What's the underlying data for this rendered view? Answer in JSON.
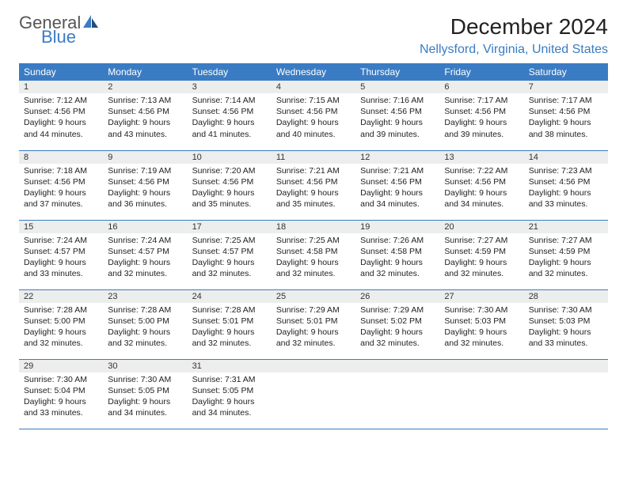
{
  "logo": {
    "text1": "General",
    "text2": "Blue"
  },
  "title": "December 2024",
  "location": "Nellysford, Virginia, United States",
  "colors": {
    "brand_blue": "#3a7cc4",
    "header_bg": "#3a7cc4",
    "header_text": "#ffffff",
    "daynum_bg": "#eceded",
    "border": "#3a7cc4",
    "text": "#222222",
    "logo_gray": "#555555"
  },
  "weekdays": [
    "Sunday",
    "Monday",
    "Tuesday",
    "Wednesday",
    "Thursday",
    "Friday",
    "Saturday"
  ],
  "days": [
    {
      "n": "1",
      "sunrise": "7:12 AM",
      "sunset": "4:56 PM",
      "daylight": "9 hours and 44 minutes."
    },
    {
      "n": "2",
      "sunrise": "7:13 AM",
      "sunset": "4:56 PM",
      "daylight": "9 hours and 43 minutes."
    },
    {
      "n": "3",
      "sunrise": "7:14 AM",
      "sunset": "4:56 PM",
      "daylight": "9 hours and 41 minutes."
    },
    {
      "n": "4",
      "sunrise": "7:15 AM",
      "sunset": "4:56 PM",
      "daylight": "9 hours and 40 minutes."
    },
    {
      "n": "5",
      "sunrise": "7:16 AM",
      "sunset": "4:56 PM",
      "daylight": "9 hours and 39 minutes."
    },
    {
      "n": "6",
      "sunrise": "7:17 AM",
      "sunset": "4:56 PM",
      "daylight": "9 hours and 39 minutes."
    },
    {
      "n": "7",
      "sunrise": "7:17 AM",
      "sunset": "4:56 PM",
      "daylight": "9 hours and 38 minutes."
    },
    {
      "n": "8",
      "sunrise": "7:18 AM",
      "sunset": "4:56 PM",
      "daylight": "9 hours and 37 minutes."
    },
    {
      "n": "9",
      "sunrise": "7:19 AM",
      "sunset": "4:56 PM",
      "daylight": "9 hours and 36 minutes."
    },
    {
      "n": "10",
      "sunrise": "7:20 AM",
      "sunset": "4:56 PM",
      "daylight": "9 hours and 35 minutes."
    },
    {
      "n": "11",
      "sunrise": "7:21 AM",
      "sunset": "4:56 PM",
      "daylight": "9 hours and 35 minutes."
    },
    {
      "n": "12",
      "sunrise": "7:21 AM",
      "sunset": "4:56 PM",
      "daylight": "9 hours and 34 minutes."
    },
    {
      "n": "13",
      "sunrise": "7:22 AM",
      "sunset": "4:56 PM",
      "daylight": "9 hours and 34 minutes."
    },
    {
      "n": "14",
      "sunrise": "7:23 AM",
      "sunset": "4:56 PM",
      "daylight": "9 hours and 33 minutes."
    },
    {
      "n": "15",
      "sunrise": "7:24 AM",
      "sunset": "4:57 PM",
      "daylight": "9 hours and 33 minutes."
    },
    {
      "n": "16",
      "sunrise": "7:24 AM",
      "sunset": "4:57 PM",
      "daylight": "9 hours and 32 minutes."
    },
    {
      "n": "17",
      "sunrise": "7:25 AM",
      "sunset": "4:57 PM",
      "daylight": "9 hours and 32 minutes."
    },
    {
      "n": "18",
      "sunrise": "7:25 AM",
      "sunset": "4:58 PM",
      "daylight": "9 hours and 32 minutes."
    },
    {
      "n": "19",
      "sunrise": "7:26 AM",
      "sunset": "4:58 PM",
      "daylight": "9 hours and 32 minutes."
    },
    {
      "n": "20",
      "sunrise": "7:27 AM",
      "sunset": "4:59 PM",
      "daylight": "9 hours and 32 minutes."
    },
    {
      "n": "21",
      "sunrise": "7:27 AM",
      "sunset": "4:59 PM",
      "daylight": "9 hours and 32 minutes."
    },
    {
      "n": "22",
      "sunrise": "7:28 AM",
      "sunset": "5:00 PM",
      "daylight": "9 hours and 32 minutes."
    },
    {
      "n": "23",
      "sunrise": "7:28 AM",
      "sunset": "5:00 PM",
      "daylight": "9 hours and 32 minutes."
    },
    {
      "n": "24",
      "sunrise": "7:28 AM",
      "sunset": "5:01 PM",
      "daylight": "9 hours and 32 minutes."
    },
    {
      "n": "25",
      "sunrise": "7:29 AM",
      "sunset": "5:01 PM",
      "daylight": "9 hours and 32 minutes."
    },
    {
      "n": "26",
      "sunrise": "7:29 AM",
      "sunset": "5:02 PM",
      "daylight": "9 hours and 32 minutes."
    },
    {
      "n": "27",
      "sunrise": "7:30 AM",
      "sunset": "5:03 PM",
      "daylight": "9 hours and 32 minutes."
    },
    {
      "n": "28",
      "sunrise": "7:30 AM",
      "sunset": "5:03 PM",
      "daylight": "9 hours and 33 minutes."
    },
    {
      "n": "29",
      "sunrise": "7:30 AM",
      "sunset": "5:04 PM",
      "daylight": "9 hours and 33 minutes."
    },
    {
      "n": "30",
      "sunrise": "7:30 AM",
      "sunset": "5:05 PM",
      "daylight": "9 hours and 34 minutes."
    },
    {
      "n": "31",
      "sunrise": "7:31 AM",
      "sunset": "5:05 PM",
      "daylight": "9 hours and 34 minutes."
    }
  ],
  "labels": {
    "sunrise": "Sunrise: ",
    "sunset": "Sunset: ",
    "daylight": "Daylight: "
  },
  "start_weekday_index": 0,
  "weeks_shown": 5
}
